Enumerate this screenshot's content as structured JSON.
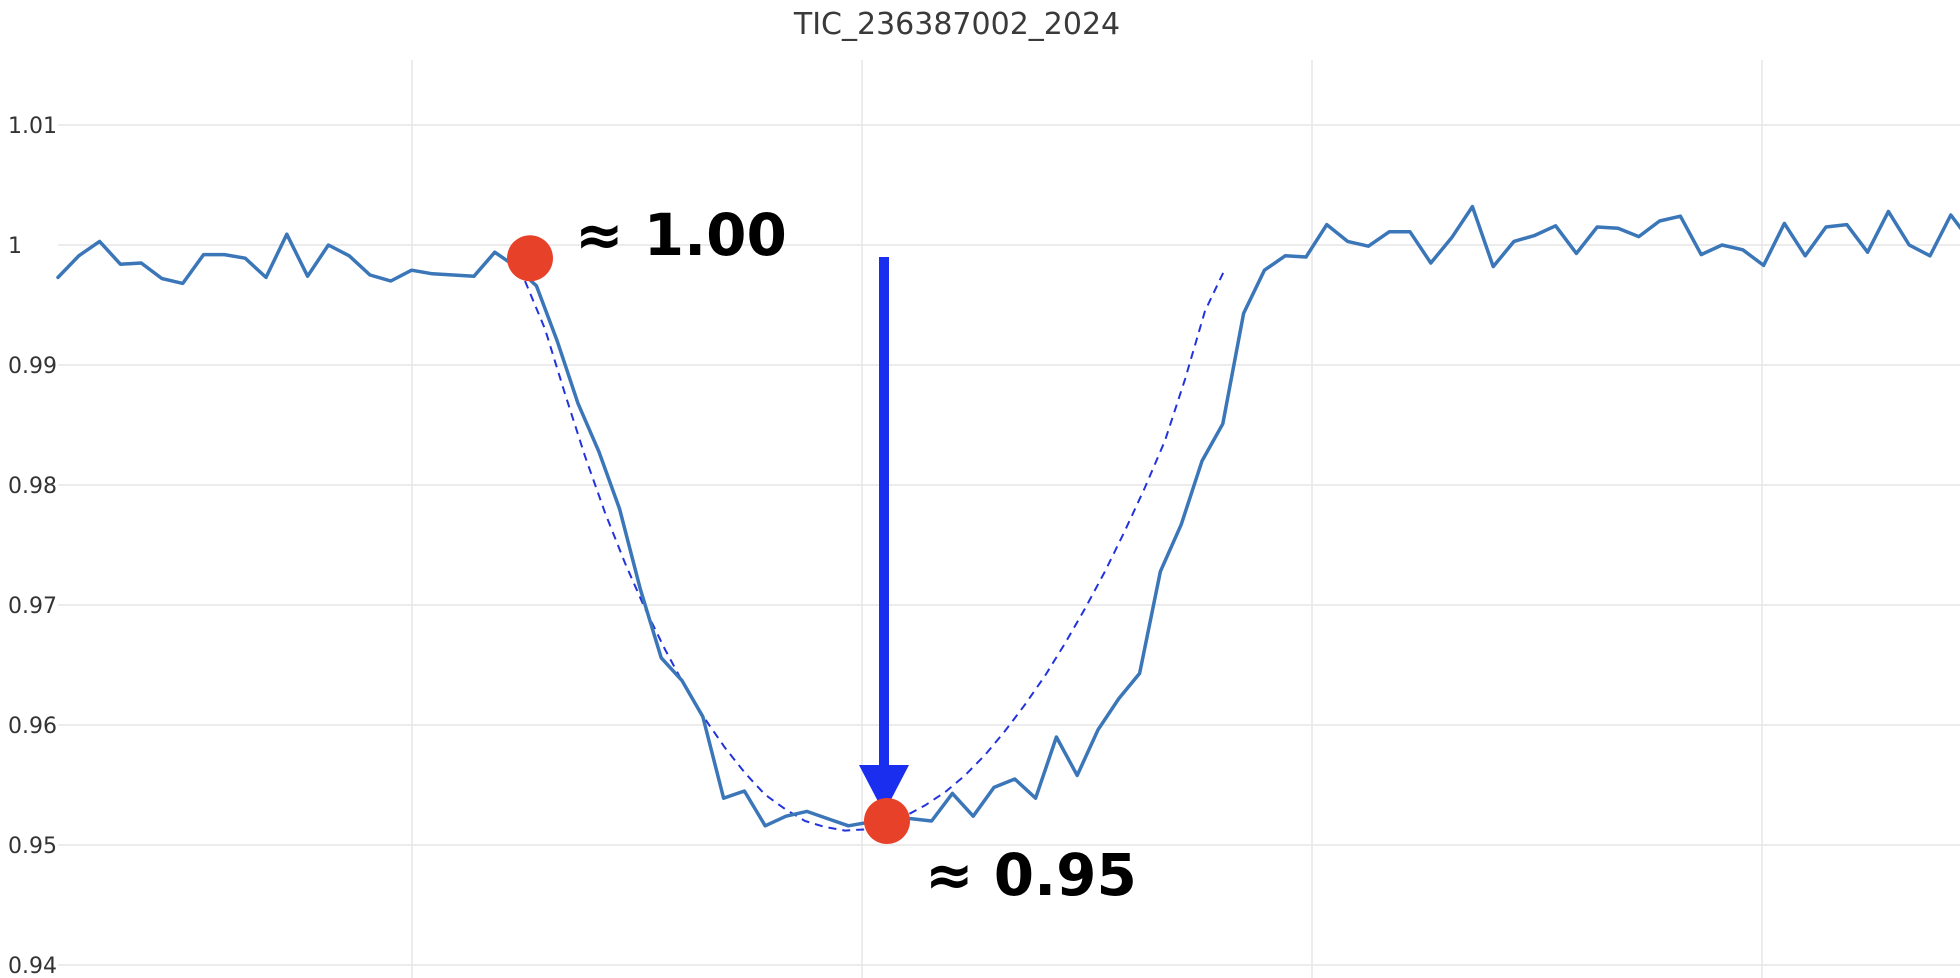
{
  "chart_data": {
    "type": "line",
    "title": "TIC_236387002_2024",
    "xlabel": "",
    "ylabel": "",
    "ylim": [
      0.94,
      1.013
    ],
    "yticks": [
      0.94,
      0.95,
      0.96,
      0.97,
      0.98,
      0.99,
      1,
      1.01
    ],
    "ytick_labels": [
      "0.94",
      "0.95",
      "0.96",
      "0.97",
      "0.98",
      "0.99",
      "1",
      "1.01"
    ],
    "grid": true,
    "legend": "none",
    "series": [
      {
        "style": "solid",
        "color": "#3a76b8",
        "values": [
          0.9973,
          0.9991,
          1.0003,
          0.9984,
          0.9985,
          0.9972,
          0.9968,
          0.9992,
          0.9992,
          0.9989,
          0.9973,
          1.0009,
          0.9974,
          1.0,
          0.9991,
          0.9975,
          0.997,
          0.9979,
          0.9976,
          0.9975,
          0.9974,
          0.9994,
          0.9982,
          0.9966,
          0.992,
          0.9868,
          0.9828,
          0.978,
          0.9713,
          0.9656,
          0.9637,
          0.9607,
          0.9539,
          0.9545,
          0.9516,
          0.9524,
          0.9528,
          0.9522,
          0.9516,
          0.9519,
          0.9522,
          0.9522,
          0.952,
          0.9543,
          0.9524,
          0.9548,
          0.9555,
          0.9539,
          0.959,
          0.9558,
          0.9596,
          0.9622,
          0.9643,
          0.9728,
          0.9767,
          0.982,
          0.9851,
          0.9943,
          0.9979,
          0.9991,
          0.999,
          1.0017,
          1.0003,
          0.9999,
          1.0011,
          1.0011,
          0.9985,
          1.0006,
          1.0032,
          0.9982,
          1.0003,
          1.0008,
          1.0016,
          0.9993,
          1.0015,
          1.0014,
          1.0007,
          1.002,
          1.0024,
          0.9992,
          1.0,
          0.9996,
          0.9983,
          1.0018,
          0.9991,
          1.0015,
          1.0017,
          0.9994,
          1.0028,
          1.0,
          0.9991,
          1.0025,
          1.0002,
          1.0023
        ]
      },
      {
        "style": "dashed",
        "color": "#2233dd",
        "note": "transit fit",
        "values": [
          0.997,
          0.993,
          0.9876,
          0.9824,
          0.9777,
          0.9735,
          0.9697,
          0.9663,
          0.9632,
          0.9605,
          0.9581,
          0.956,
          0.9542,
          0.953,
          0.952,
          0.9515,
          0.9512,
          0.9513,
          0.9518,
          0.9524,
          0.9533,
          0.9544,
          0.9558,
          0.9575,
          0.9595,
          0.9617,
          0.9641,
          0.9668,
          0.9697,
          0.9728,
          0.9762,
          0.9798,
          0.9837,
          0.9888,
          0.9945,
          0.998
        ]
      }
    ],
    "annotations": [
      {
        "label": "≈ 1.00",
        "value": 0.9989,
        "marker_color": "#e8412a"
      },
      {
        "label": "≈ 0.95",
        "value": 0.952,
        "marker_color": "#e8412a"
      }
    ],
    "arrow": {
      "from_value": 0.999,
      "to_value": 0.952,
      "color": "#1a2ef0"
    }
  }
}
